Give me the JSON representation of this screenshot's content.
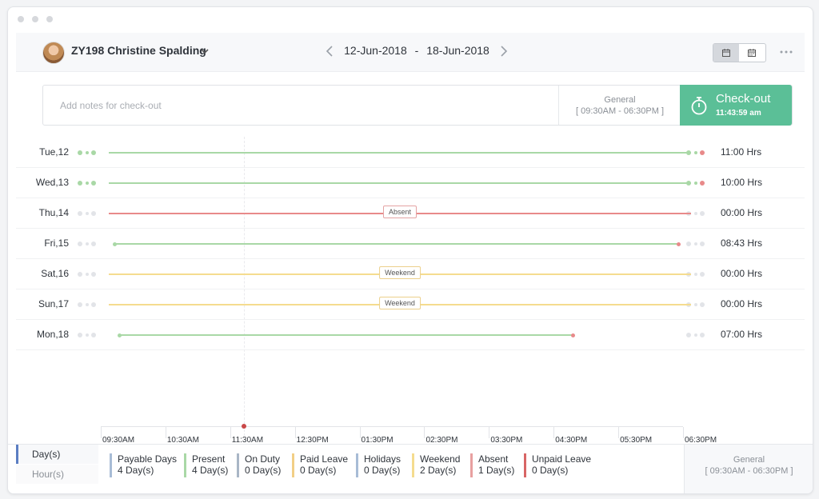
{
  "header": {
    "employee_name": "ZY198 Christine Spalding",
    "date_start": "12-Jun-2018",
    "date_separator": "-",
    "date_end": "18-Jun-2018"
  },
  "notes": {
    "placeholder": "Add notes for check-out",
    "shift_name": "General",
    "shift_time": "[ 09:30AM - 06:30PM ]"
  },
  "checkout": {
    "label": "Check-out",
    "timer": "11:43:59 am",
    "color": "#5bbf97"
  },
  "colors": {
    "present": "#a9d8a6",
    "absent": "#e88a8a",
    "weekend": "#f5dc8f",
    "inactive_dot": "#e2e4e8",
    "end_dot_red": "#e88a8a"
  },
  "days": [
    {
      "label": "Tue,12",
      "hours": "11:00 Hrs",
      "status": "present",
      "line_color": "#a9d8a6",
      "tag": "",
      "start_dot": "",
      "end_dot": "",
      "dots_active": true
    },
    {
      "label": "Wed,13",
      "hours": "10:00 Hrs",
      "status": "present",
      "line_color": "#a9d8a6",
      "tag": "",
      "start_dot": "",
      "end_dot": "",
      "dots_active": true
    },
    {
      "label": "Thu,14",
      "hours": "00:00 Hrs",
      "status": "absent",
      "line_color": "#e88a8a",
      "tag": "Absent",
      "start_dot": "",
      "end_dot": "",
      "dots_active": false
    },
    {
      "label": "Fri,15",
      "hours": "08:43 Hrs",
      "status": "present",
      "line_color": "#a9d8a6",
      "tag": "",
      "start_dot": "09:35AM",
      "end_dot": "06:18PM",
      "dots_active": false
    },
    {
      "label": "Sat,16",
      "hours": "00:00 Hrs",
      "status": "weekend",
      "line_color": "#f5dc8f",
      "tag": "Weekend",
      "start_dot": "",
      "end_dot": "",
      "dots_active": false
    },
    {
      "label": "Sun,17",
      "hours": "00:00 Hrs",
      "status": "weekend",
      "line_color": "#f5dc8f",
      "tag": "Weekend",
      "start_dot": "",
      "end_dot": "",
      "dots_active": false
    },
    {
      "label": "Mon,18",
      "hours": "07:00 Hrs",
      "status": "present",
      "line_color": "#a9d8a6",
      "tag": "",
      "start_dot": "09:40AM",
      "end_dot": "04:40PM",
      "dots_active": false
    }
  ],
  "axis": {
    "ticks": [
      "09:30AM",
      "10:30AM",
      "11:30AM",
      "12:30PM",
      "01:30PM",
      "02:30PM",
      "03:30PM",
      "04:30PM",
      "05:30PM",
      "06:30PM"
    ],
    "current_time": "11:43AM"
  },
  "footer": {
    "tabs": [
      "Day(s)",
      "Hour(s)"
    ],
    "active_tab": "Day(s)",
    "summary": [
      {
        "label": "Payable Days",
        "value": "4 Day(s)",
        "color": "#a8bcd6"
      },
      {
        "label": "Present",
        "value": "4 Day(s)",
        "color": "#a9d8a6"
      },
      {
        "label": "On Duty",
        "value": "0 Day(s)",
        "color": "#a9b6c6"
      },
      {
        "label": "Paid Leave",
        "value": "0 Day(s)",
        "color": "#f2cf86"
      },
      {
        "label": "Holidays",
        "value": "0 Day(s)",
        "color": "#a8bcd6"
      },
      {
        "label": "Weekend",
        "value": "2 Day(s)",
        "color": "#f5dc8f"
      },
      {
        "label": "Absent",
        "value": "1 Day(s)",
        "color": "#e8a0a0"
      },
      {
        "label": "Unpaid Leave",
        "value": "0 Day(s)",
        "color": "#d86565"
      }
    ],
    "shift_name": "General",
    "shift_time": "[ 09:30AM - 06:30PM ]"
  }
}
